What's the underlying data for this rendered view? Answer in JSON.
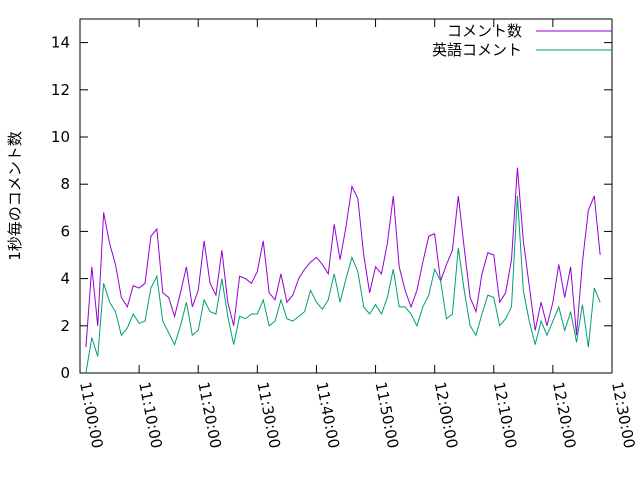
{
  "chart_data": {
    "type": "line",
    "y_label": "1秒毎のコメント数",
    "x": [
      "11:01:00",
      "11:02:00",
      "11:03:00",
      "11:04:00",
      "11:05:00",
      "11:06:00",
      "11:07:00",
      "11:08:00",
      "11:09:00",
      "11:10:00",
      "11:11:00",
      "11:12:00",
      "11:13:00",
      "11:14:00",
      "11:15:00",
      "11:16:00",
      "11:17:00",
      "11:18:00",
      "11:19:00",
      "11:20:00",
      "11:21:00",
      "11:22:00",
      "11:23:00",
      "11:24:00",
      "11:25:00",
      "11:26:00",
      "11:27:00",
      "11:28:00",
      "11:29:00",
      "11:30:00",
      "11:31:00",
      "11:32:00",
      "11:33:00",
      "11:34:00",
      "11:35:00",
      "11:36:00",
      "11:37:00",
      "11:38:00",
      "11:39:00",
      "11:40:00",
      "11:41:00",
      "11:42:00",
      "11:43:00",
      "11:44:00",
      "11:45:00",
      "11:46:00",
      "11:47:00",
      "11:48:00",
      "11:49:00",
      "11:50:00",
      "11:51:00",
      "11:52:00",
      "11:53:00",
      "11:54:00",
      "11:55:00",
      "11:56:00",
      "11:57:00",
      "11:58:00",
      "11:59:00",
      "12:00:00",
      "12:01:00",
      "12:02:00",
      "12:03:00",
      "12:04:00",
      "12:05:00",
      "12:06:00",
      "12:07:00",
      "12:08:00",
      "12:09:00",
      "12:10:00",
      "12:11:00",
      "12:12:00",
      "12:13:00",
      "12:14:00",
      "12:15:00",
      "12:16:00",
      "12:17:00",
      "12:18:00",
      "12:19:00",
      "12:20:00",
      "12:21:00",
      "12:22:00",
      "12:23:00",
      "12:24:00",
      "12:25:00",
      "12:26:00",
      "12:27:00",
      "12:28:00"
    ],
    "series": [
      {
        "name": "コメント数",
        "color": "#9400d3",
        "values": [
          1.1,
          4.5,
          2.0,
          6.8,
          5.5,
          4.6,
          3.2,
          2.8,
          3.7,
          3.6,
          3.8,
          5.8,
          6.1,
          3.4,
          3.2,
          2.4,
          3.4,
          4.5,
          2.8,
          3.5,
          5.6,
          3.8,
          3.3,
          5.2,
          3.0,
          2.0,
          4.1,
          4.0,
          3.8,
          4.3,
          5.6,
          3.4,
          3.1,
          4.2,
          3.0,
          3.3,
          4.0,
          4.4,
          4.7,
          4.9,
          4.6,
          4.2,
          6.3,
          4.8,
          6.2,
          7.9,
          7.4,
          5.0,
          3.4,
          4.5,
          4.2,
          5.5,
          7.5,
          4.5,
          3.5,
          2.8,
          3.5,
          4.7,
          5.8,
          5.9,
          3.9,
          4.6,
          5.2,
          7.5,
          5.3,
          3.2,
          2.6,
          4.2,
          5.1,
          5.0,
          3.0,
          3.4,
          4.8,
          8.7,
          5.6,
          3.7,
          1.8,
          3.0,
          2.0,
          3.0,
          4.6,
          3.2,
          4.5,
          1.6,
          4.7,
          6.9,
          7.5,
          5.0
        ]
      },
      {
        "name": "英語コメント",
        "color": "#009e73",
        "values": [
          0.0,
          1.5,
          0.7,
          3.8,
          3.0,
          2.6,
          1.6,
          1.9,
          2.5,
          2.1,
          2.2,
          3.6,
          4.1,
          2.2,
          1.7,
          1.2,
          2.0,
          3.0,
          1.6,
          1.8,
          3.1,
          2.6,
          2.5,
          4.0,
          2.4,
          1.2,
          2.4,
          2.3,
          2.5,
          2.5,
          3.1,
          2.0,
          2.2,
          3.1,
          2.3,
          2.2,
          2.4,
          2.6,
          3.5,
          3.0,
          2.7,
          3.1,
          4.2,
          3.0,
          4.0,
          4.9,
          4.3,
          2.8,
          2.5,
          2.9,
          2.5,
          3.2,
          4.4,
          2.8,
          2.8,
          2.5,
          2.0,
          2.8,
          3.3,
          4.4,
          3.9,
          2.3,
          2.5,
          5.3,
          3.5,
          2.0,
          1.6,
          2.5,
          3.3,
          3.2,
          2.0,
          2.3,
          2.8,
          7.5,
          3.5,
          2.2,
          1.2,
          2.2,
          1.6,
          2.2,
          2.8,
          1.8,
          2.6,
          1.3,
          2.9,
          1.1,
          3.6,
          3.0
        ]
      }
    ],
    "xlim": [
      "11:00:00",
      "12:30:00"
    ],
    "xticks": [
      "11:00:00",
      "11:10:00",
      "11:20:00",
      "11:30:00",
      "11:40:00",
      "11:50:00",
      "12:00:00",
      "12:10:00",
      "12:20:00",
      "12:30:00"
    ],
    "ylim": [
      0,
      15
    ],
    "yticks": [
      0,
      2,
      4,
      6,
      8,
      10,
      12,
      14
    ],
    "grid": false,
    "legend": "top-right"
  }
}
